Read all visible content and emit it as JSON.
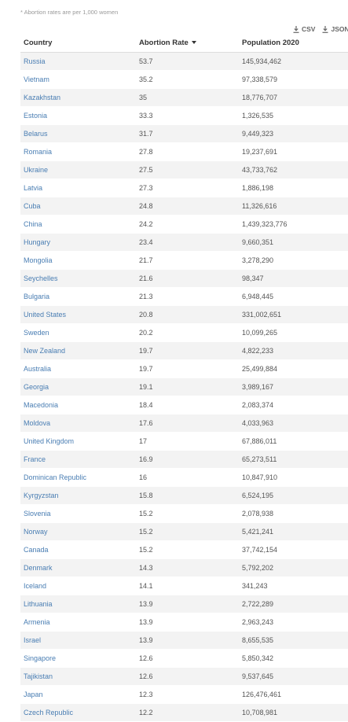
{
  "note": "* Abortion rates are per 1,000 women",
  "downloads": {
    "csv_label": "CSV",
    "json_label": "JSON"
  },
  "table": {
    "headers": [
      "Country",
      "Abortion Rate",
      "Population 2020"
    ],
    "sort": {
      "column": "Abortion Rate",
      "direction": "descending"
    },
    "rows": [
      [
        "Russia",
        "53.7",
        "145,934,462"
      ],
      [
        "Vietnam",
        "35.2",
        "97,338,579"
      ],
      [
        "Kazakhstan",
        "35",
        "18,776,707"
      ],
      [
        "Estonia",
        "33.3",
        "1,326,535"
      ],
      [
        "Belarus",
        "31.7",
        "9,449,323"
      ],
      [
        "Romania",
        "27.8",
        "19,237,691"
      ],
      [
        "Ukraine",
        "27.5",
        "43,733,762"
      ],
      [
        "Latvia",
        "27.3",
        "1,886,198"
      ],
      [
        "Cuba",
        "24.8",
        "11,326,616"
      ],
      [
        "China",
        "24.2",
        "1,439,323,776"
      ],
      [
        "Hungary",
        "23.4",
        "9,660,351"
      ],
      [
        "Mongolia",
        "21.7",
        "3,278,290"
      ],
      [
        "Seychelles",
        "21.6",
        "98,347"
      ],
      [
        "Bulgaria",
        "21.3",
        "6,948,445"
      ],
      [
        "United States",
        "20.8",
        "331,002,651"
      ],
      [
        "Sweden",
        "20.2",
        "10,099,265"
      ],
      [
        "New Zealand",
        "19.7",
        "4,822,233"
      ],
      [
        "Australia",
        "19.7",
        "25,499,884"
      ],
      [
        "Georgia",
        "19.1",
        "3,989,167"
      ],
      [
        "Macedonia",
        "18.4",
        "2,083,374"
      ],
      [
        "Moldova",
        "17.6",
        "4,033,963"
      ],
      [
        "United Kingdom",
        "17",
        "67,886,011"
      ],
      [
        "France",
        "16.9",
        "65,273,511"
      ],
      [
        "Dominican Republic",
        "16",
        "10,847,910"
      ],
      [
        "Kyrgyzstan",
        "15.8",
        "6,524,195"
      ],
      [
        "Slovenia",
        "15.2",
        "2,078,938"
      ],
      [
        "Norway",
        "15.2",
        "5,421,241"
      ],
      [
        "Canada",
        "15.2",
        "37,742,154"
      ],
      [
        "Denmark",
        "14.3",
        "5,792,202"
      ],
      [
        "Iceland",
        "14.1",
        "341,243"
      ],
      [
        "Lithuania",
        "13.9",
        "2,722,289"
      ],
      [
        "Armenia",
        "13.9",
        "2,963,243"
      ],
      [
        "Israel",
        "13.9",
        "8,655,535"
      ],
      [
        "Singapore",
        "12.6",
        "5,850,342"
      ],
      [
        "Tajikistan",
        "12.6",
        "9,537,645"
      ],
      [
        "Japan",
        "12.3",
        "126,476,461"
      ],
      [
        "Czech Republic",
        "12.2",
        "10,708,981"
      ]
    ]
  },
  "colors": {
    "link": "#4a7eb3",
    "stripe": "#f3f3f3",
    "note": "#9a9a9a"
  }
}
